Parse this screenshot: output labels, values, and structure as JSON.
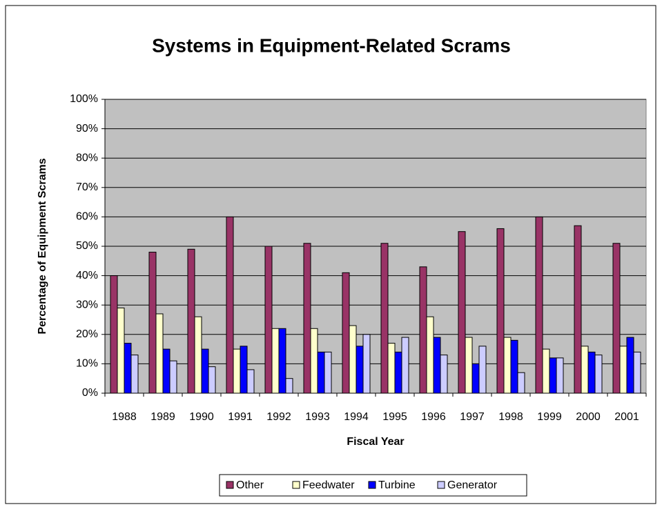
{
  "chart_data": {
    "type": "bar",
    "title": "Systems in Equipment-Related Scrams",
    "x_label": "Fiscal Year",
    "y_label": "Percentage of Equipment Scrams",
    "categories": [
      "1988",
      "1989",
      "1990",
      "1991",
      "1992",
      "1993",
      "1994",
      "1995",
      "1996",
      "1997",
      "1998",
      "1999",
      "2000",
      "2001"
    ],
    "series": [
      {
        "name": "Other",
        "color": "#993366",
        "values": [
          40,
          48,
          49,
          60,
          50,
          51,
          41,
          51,
          43,
          55,
          56,
          60,
          57,
          51
        ]
      },
      {
        "name": "Feedwater",
        "color": "#FFFFCC",
        "values": [
          29,
          27,
          26,
          15,
          22,
          22,
          23,
          17,
          26,
          19,
          19,
          15,
          16,
          16
        ]
      },
      {
        "name": "Turbine",
        "color": "#0000FF",
        "values": [
          17,
          15,
          15,
          16,
          22,
          14,
          16,
          14,
          19,
          10,
          18,
          12,
          14,
          19
        ]
      },
      {
        "name": "Generator",
        "color": "#CCCCFF",
        "values": [
          13,
          11,
          9,
          8,
          5,
          14,
          20,
          19,
          13,
          16,
          7,
          12,
          13,
          14
        ]
      }
    ],
    "ylim": [
      0,
      100
    ],
    "yticks": [
      {
        "value": 0,
        "label": "0%"
      },
      {
        "value": 10,
        "label": "10%"
      },
      {
        "value": 20,
        "label": "20%"
      },
      {
        "value": 30,
        "label": "30%"
      },
      {
        "value": 40,
        "label": "40%"
      },
      {
        "value": 50,
        "label": "50%"
      },
      {
        "value": 60,
        "label": "60%"
      },
      {
        "value": 70,
        "label": "70%"
      },
      {
        "value": 80,
        "label": "80%"
      },
      {
        "value": 90,
        "label": "90%"
      },
      {
        "value": 100,
        "label": "100%"
      }
    ],
    "grid": true,
    "legend": "bottom"
  }
}
